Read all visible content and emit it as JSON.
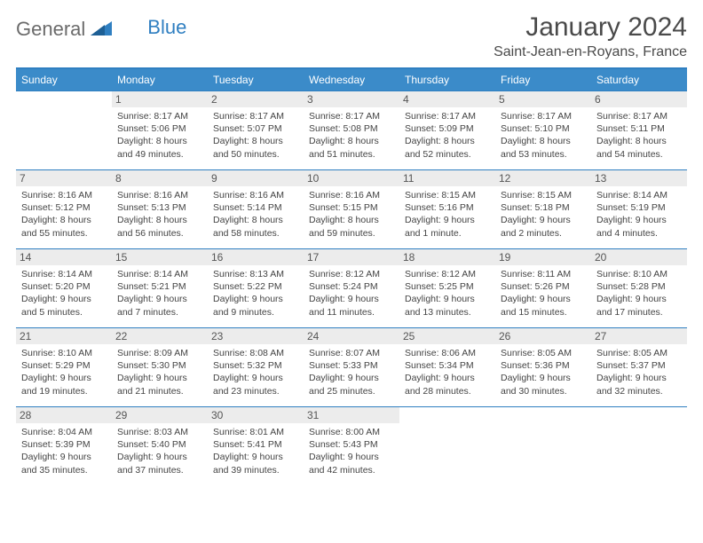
{
  "logo": {
    "part1": "General",
    "part2": "Blue"
  },
  "title": "January 2024",
  "location": "Saint-Jean-en-Royans, France",
  "colors": {
    "header_bg": "#3b8bc9",
    "border": "#2f7fc1",
    "daynum_bg": "#ececec",
    "text": "#444444",
    "title_text": "#4a4a4a"
  },
  "weekdays": [
    "Sunday",
    "Monday",
    "Tuesday",
    "Wednesday",
    "Thursday",
    "Friday",
    "Saturday"
  ],
  "weeks": [
    [
      null,
      {
        "n": "1",
        "sr": "Sunrise: 8:17 AM",
        "ss": "Sunset: 5:06 PM",
        "d1": "Daylight: 8 hours",
        "d2": "and 49 minutes."
      },
      {
        "n": "2",
        "sr": "Sunrise: 8:17 AM",
        "ss": "Sunset: 5:07 PM",
        "d1": "Daylight: 8 hours",
        "d2": "and 50 minutes."
      },
      {
        "n": "3",
        "sr": "Sunrise: 8:17 AM",
        "ss": "Sunset: 5:08 PM",
        "d1": "Daylight: 8 hours",
        "d2": "and 51 minutes."
      },
      {
        "n": "4",
        "sr": "Sunrise: 8:17 AM",
        "ss": "Sunset: 5:09 PM",
        "d1": "Daylight: 8 hours",
        "d2": "and 52 minutes."
      },
      {
        "n": "5",
        "sr": "Sunrise: 8:17 AM",
        "ss": "Sunset: 5:10 PM",
        "d1": "Daylight: 8 hours",
        "d2": "and 53 minutes."
      },
      {
        "n": "6",
        "sr": "Sunrise: 8:17 AM",
        "ss": "Sunset: 5:11 PM",
        "d1": "Daylight: 8 hours",
        "d2": "and 54 minutes."
      }
    ],
    [
      {
        "n": "7",
        "sr": "Sunrise: 8:16 AM",
        "ss": "Sunset: 5:12 PM",
        "d1": "Daylight: 8 hours",
        "d2": "and 55 minutes."
      },
      {
        "n": "8",
        "sr": "Sunrise: 8:16 AM",
        "ss": "Sunset: 5:13 PM",
        "d1": "Daylight: 8 hours",
        "d2": "and 56 minutes."
      },
      {
        "n": "9",
        "sr": "Sunrise: 8:16 AM",
        "ss": "Sunset: 5:14 PM",
        "d1": "Daylight: 8 hours",
        "d2": "and 58 minutes."
      },
      {
        "n": "10",
        "sr": "Sunrise: 8:16 AM",
        "ss": "Sunset: 5:15 PM",
        "d1": "Daylight: 8 hours",
        "d2": "and 59 minutes."
      },
      {
        "n": "11",
        "sr": "Sunrise: 8:15 AM",
        "ss": "Sunset: 5:16 PM",
        "d1": "Daylight: 9 hours",
        "d2": "and 1 minute."
      },
      {
        "n": "12",
        "sr": "Sunrise: 8:15 AM",
        "ss": "Sunset: 5:18 PM",
        "d1": "Daylight: 9 hours",
        "d2": "and 2 minutes."
      },
      {
        "n": "13",
        "sr": "Sunrise: 8:14 AM",
        "ss": "Sunset: 5:19 PM",
        "d1": "Daylight: 9 hours",
        "d2": "and 4 minutes."
      }
    ],
    [
      {
        "n": "14",
        "sr": "Sunrise: 8:14 AM",
        "ss": "Sunset: 5:20 PM",
        "d1": "Daylight: 9 hours",
        "d2": "and 5 minutes."
      },
      {
        "n": "15",
        "sr": "Sunrise: 8:14 AM",
        "ss": "Sunset: 5:21 PM",
        "d1": "Daylight: 9 hours",
        "d2": "and 7 minutes."
      },
      {
        "n": "16",
        "sr": "Sunrise: 8:13 AM",
        "ss": "Sunset: 5:22 PM",
        "d1": "Daylight: 9 hours",
        "d2": "and 9 minutes."
      },
      {
        "n": "17",
        "sr": "Sunrise: 8:12 AM",
        "ss": "Sunset: 5:24 PM",
        "d1": "Daylight: 9 hours",
        "d2": "and 11 minutes."
      },
      {
        "n": "18",
        "sr": "Sunrise: 8:12 AM",
        "ss": "Sunset: 5:25 PM",
        "d1": "Daylight: 9 hours",
        "d2": "and 13 minutes."
      },
      {
        "n": "19",
        "sr": "Sunrise: 8:11 AM",
        "ss": "Sunset: 5:26 PM",
        "d1": "Daylight: 9 hours",
        "d2": "and 15 minutes."
      },
      {
        "n": "20",
        "sr": "Sunrise: 8:10 AM",
        "ss": "Sunset: 5:28 PM",
        "d1": "Daylight: 9 hours",
        "d2": "and 17 minutes."
      }
    ],
    [
      {
        "n": "21",
        "sr": "Sunrise: 8:10 AM",
        "ss": "Sunset: 5:29 PM",
        "d1": "Daylight: 9 hours",
        "d2": "and 19 minutes."
      },
      {
        "n": "22",
        "sr": "Sunrise: 8:09 AM",
        "ss": "Sunset: 5:30 PM",
        "d1": "Daylight: 9 hours",
        "d2": "and 21 minutes."
      },
      {
        "n": "23",
        "sr": "Sunrise: 8:08 AM",
        "ss": "Sunset: 5:32 PM",
        "d1": "Daylight: 9 hours",
        "d2": "and 23 minutes."
      },
      {
        "n": "24",
        "sr": "Sunrise: 8:07 AM",
        "ss": "Sunset: 5:33 PM",
        "d1": "Daylight: 9 hours",
        "d2": "and 25 minutes."
      },
      {
        "n": "25",
        "sr": "Sunrise: 8:06 AM",
        "ss": "Sunset: 5:34 PM",
        "d1": "Daylight: 9 hours",
        "d2": "and 28 minutes."
      },
      {
        "n": "26",
        "sr": "Sunrise: 8:05 AM",
        "ss": "Sunset: 5:36 PM",
        "d1": "Daylight: 9 hours",
        "d2": "and 30 minutes."
      },
      {
        "n": "27",
        "sr": "Sunrise: 8:05 AM",
        "ss": "Sunset: 5:37 PM",
        "d1": "Daylight: 9 hours",
        "d2": "and 32 minutes."
      }
    ],
    [
      {
        "n": "28",
        "sr": "Sunrise: 8:04 AM",
        "ss": "Sunset: 5:39 PM",
        "d1": "Daylight: 9 hours",
        "d2": "and 35 minutes."
      },
      {
        "n": "29",
        "sr": "Sunrise: 8:03 AM",
        "ss": "Sunset: 5:40 PM",
        "d1": "Daylight: 9 hours",
        "d2": "and 37 minutes."
      },
      {
        "n": "30",
        "sr": "Sunrise: 8:01 AM",
        "ss": "Sunset: 5:41 PM",
        "d1": "Daylight: 9 hours",
        "d2": "and 39 minutes."
      },
      {
        "n": "31",
        "sr": "Sunrise: 8:00 AM",
        "ss": "Sunset: 5:43 PM",
        "d1": "Daylight: 9 hours",
        "d2": "and 42 minutes."
      },
      null,
      null,
      null
    ]
  ]
}
